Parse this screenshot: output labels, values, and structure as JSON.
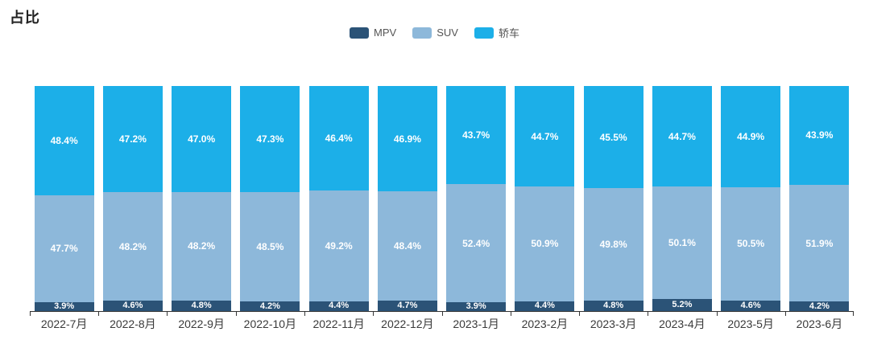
{
  "header": {
    "title": "占比"
  },
  "legend": {
    "items": [
      {
        "label": "MPV",
        "color": "#2B5377"
      },
      {
        "label": "SUV",
        "color": "#8DB8DA"
      },
      {
        "label": "轿车",
        "color": "#1CAFE8"
      }
    ]
  },
  "chart_data": {
    "type": "bar",
    "stacked": true,
    "title": "占比",
    "unit": "%",
    "categories": [
      "2022-7月",
      "2022-8月",
      "2022-9月",
      "2022-10月",
      "2022-11月",
      "2022-12月",
      "2023-1月",
      "2023-2月",
      "2023-3月",
      "2023-4月",
      "2023-5月",
      "2023-6月"
    ],
    "series": [
      {
        "name": "MPV",
        "color": "#2B5377",
        "values": [
          3.9,
          4.6,
          4.8,
          4.2,
          4.4,
          4.7,
          3.9,
          4.4,
          4.8,
          5.2,
          4.6,
          4.2
        ]
      },
      {
        "name": "SUV",
        "color": "#8DB8DA",
        "values": [
          47.7,
          48.2,
          48.2,
          48.5,
          49.2,
          48.4,
          52.4,
          50.9,
          49.8,
          50.1,
          50.5,
          51.9
        ]
      },
      {
        "name": "轿车",
        "color": "#1CAFE8",
        "values": [
          48.4,
          47.2,
          47.0,
          47.3,
          46.4,
          46.9,
          43.7,
          44.7,
          45.5,
          44.7,
          44.9,
          43.9
        ]
      }
    ],
    "value_label_format": "{value}%",
    "value_label_color": "#ffffff",
    "ylim": [
      0,
      100
    ],
    "grid": false,
    "legend_position": "top-center",
    "axis_color": "#333333",
    "tick_label_color": "#3a3a3a",
    "background": "#ffffff"
  }
}
